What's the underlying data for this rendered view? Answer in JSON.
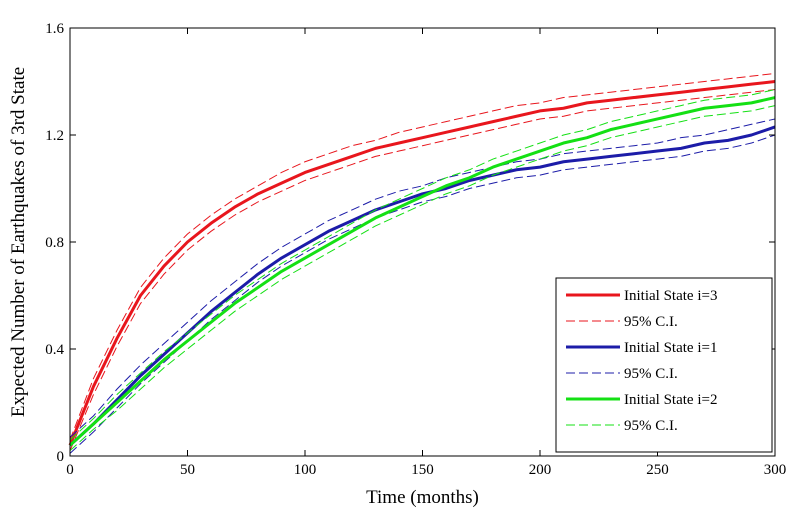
{
  "chart_data": {
    "type": "line",
    "xlabel": "Time (months)",
    "ylabel": "Expected Number of Earthquakes of 3rd State",
    "xlim": [
      0,
      300
    ],
    "ylim": [
      0,
      1.6
    ],
    "xticks": [
      0,
      50,
      100,
      150,
      200,
      250,
      300
    ],
    "yticks": [
      0,
      0.4,
      0.8,
      1.2,
      1.6
    ],
    "xtick_labels": [
      "0",
      "50",
      "100",
      "150",
      "200",
      "250",
      "300"
    ],
    "ytick_labels": [
      "0",
      "0.4",
      "0.8",
      "1.2",
      "1.6"
    ],
    "grid": false,
    "legend_position": "bottom-right",
    "x": [
      0,
      10,
      20,
      30,
      40,
      50,
      60,
      70,
      80,
      90,
      100,
      110,
      120,
      130,
      140,
      150,
      160,
      170,
      180,
      190,
      200,
      210,
      220,
      230,
      240,
      250,
      260,
      270,
      280,
      290,
      300
    ],
    "series": [
      {
        "name": "Initial State i=3",
        "style": "solid",
        "color": "#e8161d",
        "values": [
          0.04,
          0.26,
          0.44,
          0.6,
          0.71,
          0.8,
          0.87,
          0.93,
          0.98,
          1.02,
          1.06,
          1.09,
          1.12,
          1.15,
          1.17,
          1.19,
          1.21,
          1.23,
          1.25,
          1.27,
          1.29,
          1.3,
          1.32,
          1.33,
          1.34,
          1.35,
          1.36,
          1.37,
          1.38,
          1.39,
          1.4
        ]
      },
      {
        "name": "95% C.I.",
        "style": "dashed",
        "color": "#e8161d",
        "values": [
          0.06,
          0.29,
          0.47,
          0.63,
          0.74,
          0.83,
          0.9,
          0.96,
          1.01,
          1.06,
          1.1,
          1.13,
          1.16,
          1.18,
          1.21,
          1.23,
          1.25,
          1.27,
          1.29,
          1.31,
          1.32,
          1.34,
          1.35,
          1.36,
          1.37,
          1.38,
          1.39,
          1.4,
          1.41,
          1.42,
          1.43
        ]
      },
      {
        "name": "95% C.I.",
        "style": "dashed",
        "color": "#e8161d",
        "values": [
          0.02,
          0.23,
          0.41,
          0.57,
          0.68,
          0.77,
          0.84,
          0.9,
          0.95,
          0.99,
          1.03,
          1.06,
          1.09,
          1.12,
          1.14,
          1.16,
          1.18,
          1.2,
          1.22,
          1.24,
          1.26,
          1.27,
          1.29,
          1.3,
          1.31,
          1.32,
          1.33,
          1.34,
          1.35,
          1.36,
          1.37
        ]
      },
      {
        "name": "Initial State i=1",
        "style": "solid",
        "color": "#1c1ca8",
        "values": [
          0.04,
          0.12,
          0.21,
          0.3,
          0.38,
          0.46,
          0.54,
          0.61,
          0.68,
          0.74,
          0.79,
          0.84,
          0.88,
          0.92,
          0.95,
          0.98,
          1.0,
          1.03,
          1.05,
          1.07,
          1.08,
          1.1,
          1.11,
          1.12,
          1.13,
          1.14,
          1.15,
          1.17,
          1.18,
          1.2,
          1.23
        ]
      },
      {
        "name": "95% C.I.",
        "style": "dashed",
        "color": "#1c1ca8",
        "values": [
          0.07,
          0.15,
          0.25,
          0.34,
          0.42,
          0.5,
          0.58,
          0.65,
          0.72,
          0.78,
          0.83,
          0.88,
          0.92,
          0.96,
          0.99,
          1.01,
          1.04,
          1.06,
          1.08,
          1.1,
          1.11,
          1.13,
          1.14,
          1.15,
          1.16,
          1.17,
          1.19,
          1.2,
          1.22,
          1.24,
          1.26
        ]
      },
      {
        "name": "95% C.I.",
        "style": "dashed",
        "color": "#1c1ca8",
        "values": [
          0.01,
          0.09,
          0.18,
          0.27,
          0.35,
          0.43,
          0.51,
          0.58,
          0.65,
          0.71,
          0.76,
          0.81,
          0.85,
          0.89,
          0.92,
          0.95,
          0.97,
          1.0,
          1.02,
          1.04,
          1.05,
          1.07,
          1.08,
          1.09,
          1.1,
          1.11,
          1.12,
          1.14,
          1.15,
          1.17,
          1.2
        ]
      },
      {
        "name": "Initial State i=2",
        "style": "solid",
        "color": "#14e014",
        "values": [
          0.04,
          0.12,
          0.2,
          0.28,
          0.36,
          0.43,
          0.5,
          0.57,
          0.63,
          0.69,
          0.74,
          0.79,
          0.84,
          0.89,
          0.93,
          0.97,
          1.01,
          1.04,
          1.08,
          1.11,
          1.14,
          1.17,
          1.19,
          1.22,
          1.24,
          1.26,
          1.28,
          1.3,
          1.31,
          1.32,
          1.34
        ]
      },
      {
        "name": "95% C.I.",
        "style": "dashed",
        "color": "#14e014",
        "values": [
          0.06,
          0.14,
          0.23,
          0.31,
          0.39,
          0.46,
          0.53,
          0.6,
          0.66,
          0.72,
          0.77,
          0.82,
          0.87,
          0.92,
          0.96,
          1.0,
          1.04,
          1.07,
          1.11,
          1.14,
          1.17,
          1.2,
          1.22,
          1.25,
          1.27,
          1.29,
          1.31,
          1.33,
          1.34,
          1.35,
          1.37
        ]
      },
      {
        "name": "95% C.I.",
        "style": "dashed",
        "color": "#14e014",
        "values": [
          0.02,
          0.1,
          0.17,
          0.25,
          0.33,
          0.4,
          0.47,
          0.54,
          0.6,
          0.66,
          0.71,
          0.76,
          0.81,
          0.86,
          0.9,
          0.94,
          0.98,
          1.01,
          1.05,
          1.08,
          1.11,
          1.14,
          1.16,
          1.19,
          1.21,
          1.23,
          1.25,
          1.27,
          1.28,
          1.29,
          1.31
        ]
      }
    ],
    "legend": [
      {
        "label": "Initial State i=3",
        "style": "solid",
        "color": "#e8161d"
      },
      {
        "label": "95% C.I.",
        "style": "dashed",
        "color": "#e8161d"
      },
      {
        "label": "Initial State i=1",
        "style": "solid",
        "color": "#1c1ca8"
      },
      {
        "label": "95% C.I.",
        "style": "dashed",
        "color": "#1c1ca8"
      },
      {
        "label": "Initial State i=2",
        "style": "solid",
        "color": "#14e014"
      },
      {
        "label": "95% C.I.",
        "style": "dashed",
        "color": "#14e014"
      }
    ]
  }
}
